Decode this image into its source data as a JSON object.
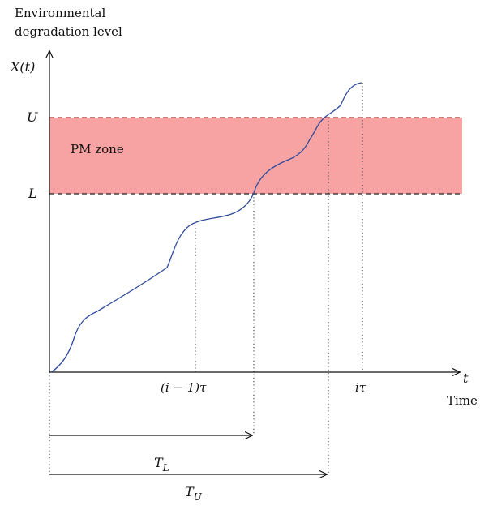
{
  "y_axis": {
    "title_line1": "Environmental",
    "title_line2": "degradation level",
    "var_label": "X(t)",
    "upper_label": "U",
    "lower_label": "L"
  },
  "x_axis": {
    "var_label": "t",
    "title": "Time",
    "tick_prev": "(i − 1)τ",
    "tick_curr": "iτ"
  },
  "zone": {
    "label": "PM zone",
    "color": "#f7a3a3",
    "upper_line_color": "#b03030",
    "lower_line_color": "#222222"
  },
  "curve": {
    "color": "#2e4a9a"
  },
  "intervals": {
    "lower_label": "T_L",
    "upper_label": "T_U"
  }
}
